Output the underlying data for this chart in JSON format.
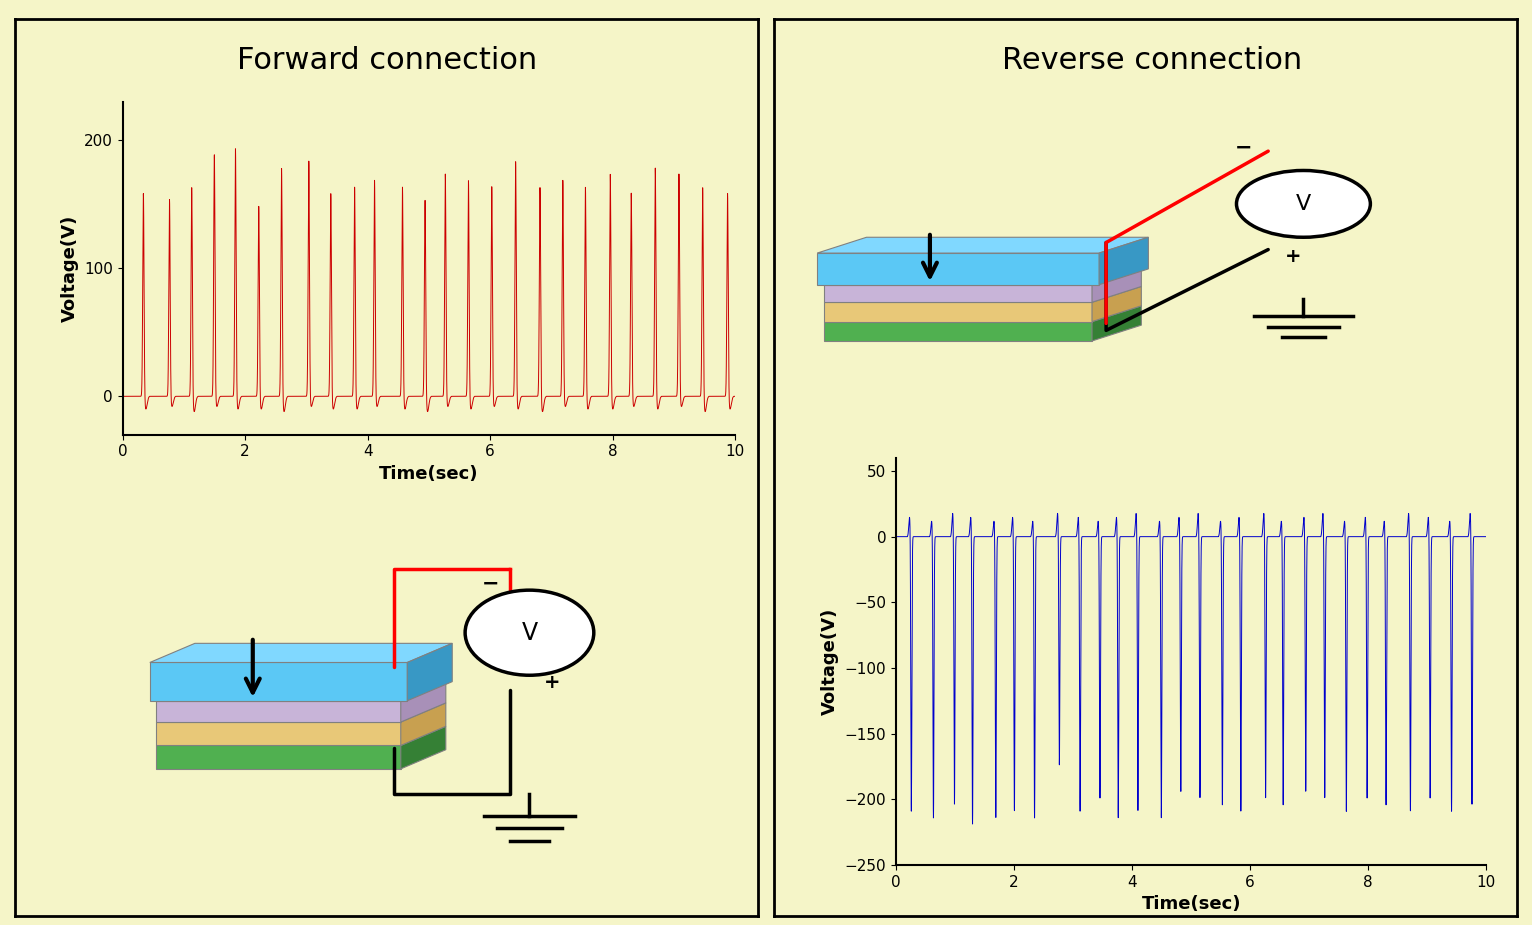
{
  "background_color": "#f5f5c8",
  "left_title": "Forward connection",
  "right_title": "Reverse connection",
  "title_fontsize": 22,
  "axis_label_fontsize": 13,
  "tick_fontsize": 11,
  "forward_color": "#cc0000",
  "reverse_color": "#0000cc",
  "forward_xlim": [
    0,
    10
  ],
  "forward_ylim": [
    -30,
    230
  ],
  "forward_yticks": [
    0,
    100,
    200
  ],
  "reverse_xlim": [
    0,
    10
  ],
  "reverse_ylim": [
    -250,
    60
  ],
  "reverse_yticks": [
    -250,
    -200,
    -150,
    -100,
    -50,
    0,
    50
  ],
  "xticks": [
    0,
    2,
    4,
    6,
    8,
    10
  ],
  "xlabel": "Time(sec)",
  "ylabel": "Voltage(V)",
  "layer_blue": "#5bc8f5",
  "layer_lavender": "#c8b4d8",
  "layer_tan": "#e8c878",
  "layer_green": "#50b050"
}
